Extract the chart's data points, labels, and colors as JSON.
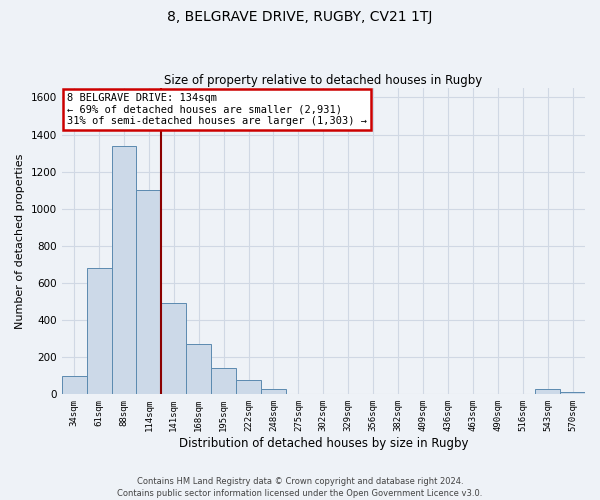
{
  "title": "8, BELGRAVE DRIVE, RUGBY, CV21 1TJ",
  "subtitle": "Size of property relative to detached houses in Rugby",
  "xlabel": "Distribution of detached houses by size in Rugby",
  "ylabel": "Number of detached properties",
  "bar_color": "#ccd9e8",
  "bar_edge_color": "#5b8ab0",
  "categories": [
    "34sqm",
    "61sqm",
    "88sqm",
    "114sqm",
    "141sqm",
    "168sqm",
    "195sqm",
    "222sqm",
    "248sqm",
    "275sqm",
    "302sqm",
    "329sqm",
    "356sqm",
    "382sqm",
    "409sqm",
    "436sqm",
    "463sqm",
    "490sqm",
    "516sqm",
    "543sqm",
    "570sqm"
  ],
  "values": [
    100,
    680,
    1340,
    1100,
    490,
    270,
    140,
    75,
    30,
    0,
    0,
    0,
    0,
    0,
    0,
    0,
    0,
    0,
    0,
    30,
    10
  ],
  "ylim": [
    0,
    1650
  ],
  "yticks": [
    0,
    200,
    400,
    600,
    800,
    1000,
    1200,
    1400,
    1600
  ],
  "annotation_text": "8 BELGRAVE DRIVE: 134sqm\n← 69% of detached houses are smaller (2,931)\n31% of semi-detached houses are larger (1,303) →",
  "annotation_box_color": "#ffffff",
  "annotation_border_color": "#cc0000",
  "vline_color": "#8b0000",
  "vline_position": 3.5,
  "footer_text": "Contains HM Land Registry data © Crown copyright and database right 2024.\nContains public sector information licensed under the Open Government Licence v3.0.",
  "background_color": "#eef2f7",
  "grid_color": "#d0d8e4",
  "title_fontsize": 10,
  "subtitle_fontsize": 9
}
